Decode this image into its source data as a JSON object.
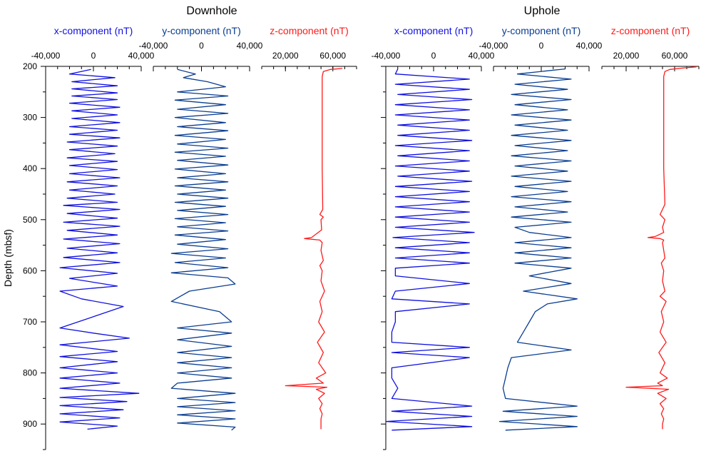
{
  "chart_data": {
    "type": "line",
    "ylabel": "Depth (mbsf)",
    "ylim": [
      200,
      950
    ],
    "yticks": [
      200,
      300,
      400,
      500,
      600,
      700,
      800,
      900
    ],
    "colors": {
      "x": "#1010e0",
      "y": "#0a3d91",
      "z": "#ff1a1a"
    },
    "panels": [
      {
        "title": "Downhole",
        "tracks": [
          {
            "key": "x",
            "label": "x-component (nT)",
            "xlim": [
              -40000,
              40000
            ],
            "xticks": [
              -40000,
              0,
              40000
            ],
            "xtick_labels": [
              "-40,000",
              "0",
              "40,000"
            ],
            "depth": [
              206,
              215,
              222,
              230,
              238,
              244,
              252,
              258,
              265,
              272,
              280,
              287,
              295,
              302,
              310,
              318,
              325,
              333,
              340,
              348,
              356,
              363,
              371,
              379,
              386,
              394,
              402,
              410,
              418,
              426,
              434,
              442,
              450,
              458,
              466,
              472,
              480,
              488,
              497,
              505,
              513,
              521,
              530,
              538,
              547,
              556,
              565,
              574,
              584,
              594,
              605,
              615,
              630,
              640,
              655,
              670,
              690,
              712,
              722,
              732,
              745,
              758,
              768,
              778,
              790,
              800,
              810,
              820,
              830,
              840,
              848,
              856,
              864,
              872,
              880,
              888,
              896,
              904,
              910
            ],
            "values": [
              -2000,
              -20000,
              18000,
              -18000,
              20000,
              -18000,
              20000,
              -18000,
              20000,
              -20000,
              22000,
              -18000,
              20000,
              -18000,
              22000,
              -20000,
              20000,
              -20000,
              22000,
              -22000,
              20000,
              -20000,
              18000,
              -22000,
              20000,
              -20000,
              20000,
              -20000,
              22000,
              -22000,
              20000,
              -20000,
              18000,
              -22000,
              20000,
              -25000,
              22000,
              -22000,
              20000,
              -25000,
              22000,
              -22000,
              20000,
              -25000,
              22000,
              -22000,
              20000,
              -25000,
              22000,
              -28000,
              20000,
              -20000,
              20000,
              -28000,
              -10000,
              25000,
              0,
              -28000,
              0,
              30000,
              -28000,
              20000,
              -28000,
              20000,
              -28000,
              20000,
              -28000,
              22000,
              -28000,
              38000,
              -28000,
              28000,
              -28000,
              25000,
              -28000,
              22000,
              -28000,
              20000,
              -5000
            ]
          },
          {
            "key": "y",
            "label": "y-component (nT)",
            "xlim": [
              -40000,
              40000
            ],
            "xticks": [
              -40000,
              0,
              40000
            ],
            "xtick_labels": [
              "-40,000",
              "0",
              "40,000"
            ],
            "depth": [
              206,
              215,
              222,
              230,
              240,
              250,
              258,
              266,
              275,
              284,
              292,
              300,
              310,
              318,
              326,
              335,
              343,
              352,
              360,
              368,
              376,
              384,
              393,
              401,
              410,
              418,
              426,
              434,
              442,
              450,
              458,
              466,
              474,
              482,
              490,
              498,
              506,
              514,
              522,
              530,
              539,
              548,
              557,
              566,
              575,
              584,
              594,
              604,
              614,
              626,
              640,
              660,
              680,
              700,
              712,
              722,
              735,
              748,
              760,
              770,
              780,
              790,
              800,
              810,
              820,
              830,
              840,
              850,
              858,
              866,
              874,
              882,
              890,
              898,
              906,
              912
            ],
            "values": [
              -20000,
              -5000,
              -15000,
              5000,
              20000,
              -20000,
              22000,
              -22000,
              20000,
              -20000,
              22000,
              -22000,
              20000,
              -20000,
              22000,
              -22000,
              20000,
              -20000,
              22000,
              -22000,
              20000,
              -20000,
              22000,
              -22000,
              20000,
              -20000,
              22000,
              -22000,
              20000,
              -20000,
              22000,
              -22000,
              20000,
              -20000,
              22000,
              -22000,
              20000,
              -20000,
              22000,
              -22000,
              20000,
              -20000,
              22000,
              -25000,
              20000,
              -22000,
              22000,
              -25000,
              22000,
              28000,
              -10000,
              -25000,
              15000,
              25000,
              -20000,
              25000,
              -20000,
              25000,
              -20000,
              25000,
              -20000,
              25000,
              -20000,
              25000,
              -20000,
              -25000,
              28000,
              -20000,
              28000,
              -20000,
              28000,
              -20000,
              28000,
              -20000,
              28000,
              25000
            ]
          },
          {
            "key": "z",
            "label": "z-component (nT)",
            "xlim": [
              0,
              80000
            ],
            "xticks": [
              20000,
              60000
            ],
            "xtick_labels": [
              "20,000",
              "60,000"
            ],
            "depth": [
              204,
              206,
              210,
              220,
              260,
              320,
              400,
              480,
              490,
              495,
              500,
              520,
              535,
              537,
              540,
              545,
              560,
              580,
              590,
              600,
              620,
              640,
              660,
              680,
              700,
              720,
              740,
              760,
              780,
              800,
              810,
              820,
              825,
              828,
              832,
              840,
              850,
              860,
              870,
              880,
              890,
              900,
              910
            ],
            "values": [
              68000,
              58000,
              52000,
              51000,
              51000,
              51000,
              51000,
              51500,
              49000,
              52000,
              50000,
              50500,
              42000,
              36000,
              49000,
              51000,
              50000,
              52000,
              49000,
              51000,
              50000,
              53000,
              49000,
              51000,
              48000,
              53000,
              47000,
              52000,
              48000,
              54000,
              46000,
              52000,
              20000,
              55000,
              46000,
              53000,
              48000,
              51000,
              49000,
              51000,
              50000,
              50000,
              50000
            ]
          }
        ]
      },
      {
        "title": "Uphole",
        "tracks": [
          {
            "key": "x",
            "label": "x-component (nT)",
            "xlim": [
              -40000,
              40000
            ],
            "xticks": [
              -40000,
              0,
              40000
            ],
            "xtick_labels": [
              "-40,000",
              "0",
              "40,000"
            ],
            "depth": [
              205,
              215,
              225,
              235,
              245,
              255,
              265,
              275,
              285,
              295,
              305,
              315,
              325,
              335,
              345,
              355,
              365,
              375,
              385,
              395,
              405,
              415,
              425,
              435,
              445,
              455,
              465,
              475,
              485,
              495,
              505,
              515,
              525,
              535,
              545,
              555,
              565,
              575,
              585,
              595,
              610,
              625,
              640,
              655,
              665,
              680,
              700,
              720,
              740,
              750,
              760,
              770,
              790,
              810,
              830,
              850,
              865,
              875,
              885,
              895,
              905,
              912
            ],
            "values": [
              -30000,
              -32000,
              30000,
              -32000,
              30000,
              -30000,
              32000,
              -32000,
              30000,
              -32000,
              30000,
              -30000,
              30000,
              -30000,
              32000,
              -32000,
              30000,
              -30000,
              30000,
              -32000,
              30000,
              -30000,
              32000,
              -32000,
              30000,
              -32000,
              30000,
              -32000,
              30000,
              -32000,
              30000,
              -32000,
              34000,
              -34000,
              30000,
              -32000,
              30000,
              -32000,
              30000,
              -32000,
              -32000,
              30000,
              -32000,
              -35000,
              30000,
              -32000,
              -32000,
              -35000,
              -35000,
              30000,
              -35000,
              30000,
              -35000,
              -35000,
              -30000,
              -35000,
              32000,
              -35000,
              32000,
              -40000,
              32000,
              -35000
            ]
          },
          {
            "key": "y",
            "label": "y-component (nT)",
            "xlim": [
              -40000,
              40000
            ],
            "xticks": [
              -40000,
              0,
              40000
            ],
            "xtick_labels": [
              "-40,000",
              "0",
              "40,000"
            ],
            "depth": [
              205,
              215,
              225,
              235,
              245,
              255,
              265,
              275,
              285,
              295,
              305,
              315,
              325,
              335,
              345,
              355,
              365,
              375,
              385,
              395,
              405,
              415,
              425,
              435,
              445,
              455,
              465,
              475,
              485,
              495,
              505,
              515,
              525,
              535,
              545,
              555,
              565,
              575,
              585,
              595,
              610,
              625,
              640,
              655,
              665,
              680,
              700,
              720,
              740,
              755,
              770,
              790,
              810,
              830,
              850,
              865,
              875,
              885,
              895,
              905,
              912
            ],
            "values": [
              20000,
              -20000,
              25000,
              -22000,
              22000,
              -25000,
              25000,
              -22000,
              22000,
              -25000,
              25000,
              -22000,
              22000,
              -25000,
              25000,
              -22000,
              22000,
              -25000,
              25000,
              -22000,
              22000,
              -25000,
              25000,
              -22000,
              22000,
              -25000,
              25000,
              -22000,
              22000,
              -25000,
              25000,
              -22000,
              -10000,
              25000,
              -22000,
              25000,
              -22000,
              25000,
              -22000,
              25000,
              -10000,
              25000,
              -15000,
              30000,
              5000,
              -5000,
              -10000,
              -15000,
              -20000,
              25000,
              -25000,
              -28000,
              -30000,
              -32000,
              -30000,
              30000,
              -32000,
              30000,
              -35000,
              30000,
              -30000
            ]
          },
          {
            "key": "z",
            "label": "z-component (nT)",
            "xlim": [
              0,
              80000
            ],
            "xticks": [
              20000,
              60000
            ],
            "xtick_labels": [
              "20,000",
              "60,000"
            ],
            "depth": [
              201,
              203,
              206,
              210,
              220,
              260,
              320,
              400,
              470,
              490,
              500,
              515,
              525,
              533,
              535,
              537,
              540,
              545,
              560,
              575,
              585,
              600,
              620,
              640,
              650,
              660,
              680,
              700,
              720,
              740,
              760,
              780,
              800,
              810,
              820,
              825,
              828,
              832,
              840,
              850,
              860,
              870,
              880,
              890,
              900,
              910
            ],
            "values": [
              78000,
              68000,
              56000,
              52000,
              51000,
              51000,
              51000,
              51000,
              52000,
              48000,
              52000,
              50000,
              51000,
              44000,
              38000,
              48000,
              51000,
              50000,
              51000,
              52000,
              49000,
              51000,
              50000,
              52000,
              48000,
              53000,
              49000,
              51000,
              48000,
              53000,
              47000,
              52000,
              48000,
              54000,
              46000,
              50000,
              20000,
              55000,
              46000,
              53000,
              48000,
              51000,
              49000,
              51000,
              50000,
              50000
            ]
          }
        ]
      }
    ]
  }
}
